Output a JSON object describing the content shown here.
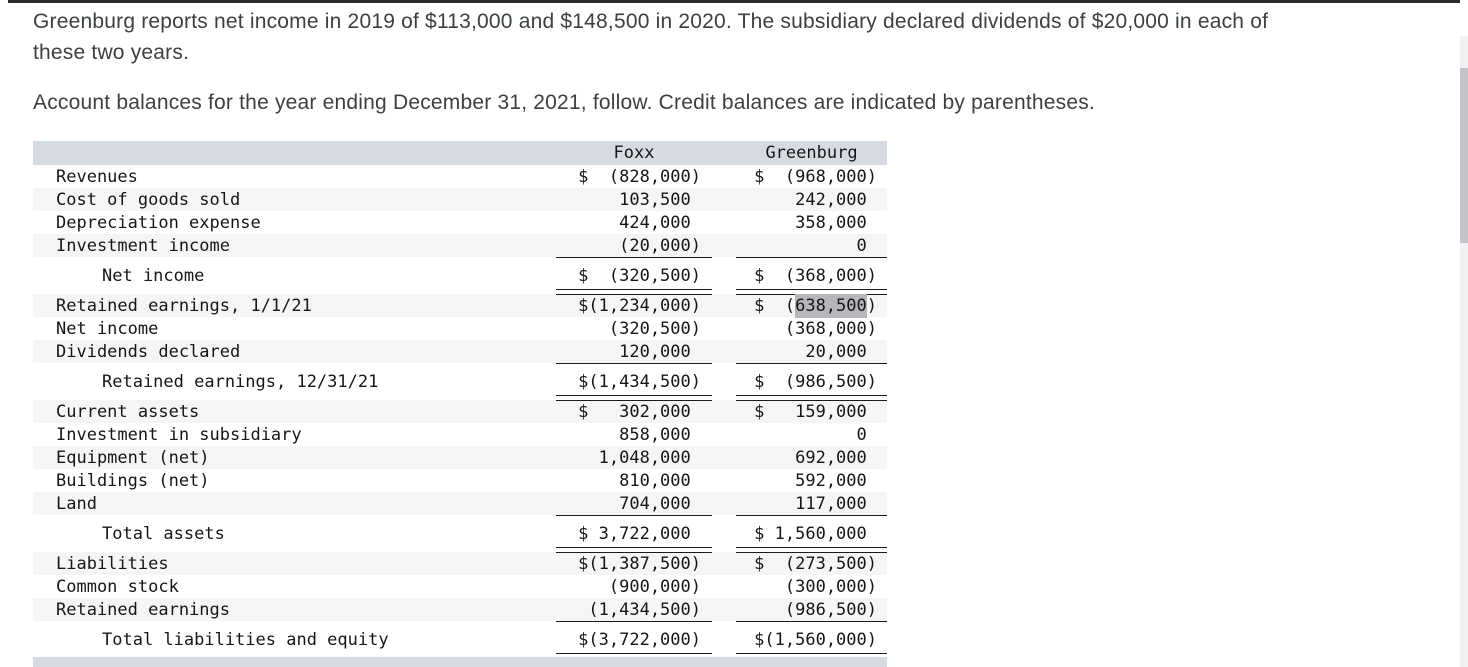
{
  "intro": {
    "line1": "Greenburg reports net income in 2019 of $113,000 and $148,500 in 2020. The subsidiary declared dividends of $20,000 in each of",
    "line2": "these two years.",
    "para2": "Account balances for the year ending December 31, 2021, follow. Credit balances are indicated by parentheses."
  },
  "table": {
    "columns": [
      "",
      "Foxx",
      "Greenburg"
    ],
    "header_bg": "#d6dbe2",
    "stripe_bg": "#f5f5f5",
    "highlight_color": "#b5b7ba",
    "rows": [
      {
        "label": "Revenues",
        "indent": false,
        "foxx": {
          "dollar": true,
          "value": "(828,000)"
        },
        "greenburg": {
          "dollar": true,
          "value": "(968,000)"
        },
        "rule": "none",
        "space_after": false
      },
      {
        "label": "Cost of goods sold",
        "indent": false,
        "foxx": {
          "dollar": false,
          "value": "103,500"
        },
        "greenburg": {
          "dollar": false,
          "value": "242,000"
        },
        "rule": "none",
        "space_after": false
      },
      {
        "label": "Depreciation expense",
        "indent": false,
        "foxx": {
          "dollar": false,
          "value": "424,000"
        },
        "greenburg": {
          "dollar": false,
          "value": "358,000"
        },
        "rule": "none",
        "space_after": false
      },
      {
        "label": "Investment income",
        "indent": false,
        "foxx": {
          "dollar": false,
          "value": "(20,000)"
        },
        "greenburg": {
          "dollar": false,
          "value": "0"
        },
        "rule": "single",
        "space_after": true
      },
      {
        "label": "Net income",
        "indent": true,
        "foxx": {
          "dollar": true,
          "value": "(320,500)"
        },
        "greenburg": {
          "dollar": true,
          "value": "(368,000)"
        },
        "rule": "double",
        "space_after": true
      },
      {
        "label": "Retained earnings, 1/1/21",
        "indent": false,
        "foxx": {
          "dollar": true,
          "value": "(1,234,000)"
        },
        "greenburg": {
          "dollar": true,
          "value": "(638,500)",
          "highlight": "638,500"
        },
        "rule": "none",
        "space_after": false
      },
      {
        "label": "Net income",
        "indent": false,
        "foxx": {
          "dollar": false,
          "value": "(320,500)"
        },
        "greenburg": {
          "dollar": false,
          "value": "(368,000)"
        },
        "rule": "none",
        "space_after": false
      },
      {
        "label": "Dividends declared",
        "indent": false,
        "foxx": {
          "dollar": false,
          "value": "120,000"
        },
        "greenburg": {
          "dollar": false,
          "value": "20,000"
        },
        "rule": "single",
        "space_after": true
      },
      {
        "label": "Retained earnings, 12/31/21",
        "indent": true,
        "foxx": {
          "dollar": true,
          "value": "(1,434,500)"
        },
        "greenburg": {
          "dollar": true,
          "value": "(986,500)"
        },
        "rule": "double",
        "space_after": true
      },
      {
        "label": "Current assets",
        "indent": false,
        "foxx": {
          "dollar": true,
          "value": "302,000"
        },
        "greenburg": {
          "dollar": true,
          "value": "159,000"
        },
        "rule": "none",
        "space_after": false
      },
      {
        "label": "Investment in subsidiary",
        "indent": false,
        "foxx": {
          "dollar": false,
          "value": "858,000"
        },
        "greenburg": {
          "dollar": false,
          "value": "0"
        },
        "rule": "none",
        "space_after": false
      },
      {
        "label": "Equipment (net)",
        "indent": false,
        "foxx": {
          "dollar": false,
          "value": "1,048,000"
        },
        "greenburg": {
          "dollar": false,
          "value": "692,000"
        },
        "rule": "none",
        "space_after": false
      },
      {
        "label": "Buildings (net)",
        "indent": false,
        "foxx": {
          "dollar": false,
          "value": "810,000"
        },
        "greenburg": {
          "dollar": false,
          "value": "592,000"
        },
        "rule": "none",
        "space_after": false
      },
      {
        "label": "Land",
        "indent": false,
        "foxx": {
          "dollar": false,
          "value": "704,000"
        },
        "greenburg": {
          "dollar": false,
          "value": "117,000"
        },
        "rule": "single",
        "space_after": true
      },
      {
        "label": "Total assets",
        "indent": true,
        "foxx": {
          "dollar": true,
          "value": "3,722,000"
        },
        "greenburg": {
          "dollar": true,
          "value": "1,560,000"
        },
        "rule": "double",
        "space_after": true
      },
      {
        "label": "Liabilities",
        "indent": false,
        "foxx": {
          "dollar": true,
          "value": "(1,387,500)"
        },
        "greenburg": {
          "dollar": true,
          "value": "(273,500)"
        },
        "rule": "none",
        "space_after": false
      },
      {
        "label": "Common stock",
        "indent": false,
        "foxx": {
          "dollar": false,
          "value": "(900,000)"
        },
        "greenburg": {
          "dollar": false,
          "value": "(300,000)"
        },
        "rule": "none",
        "space_after": false
      },
      {
        "label": "Retained earnings",
        "indent": false,
        "foxx": {
          "dollar": false,
          "value": "(1,434,500)"
        },
        "greenburg": {
          "dollar": false,
          "value": "(986,500)"
        },
        "rule": "single",
        "space_after": true
      },
      {
        "label": "Total liabilities and equity",
        "indent": true,
        "foxx": {
          "dollar": true,
          "value": "(3,722,000)"
        },
        "greenburg": {
          "dollar": true,
          "value": "(1,560,000)"
        },
        "rule": "double",
        "space_after": false
      }
    ]
  }
}
